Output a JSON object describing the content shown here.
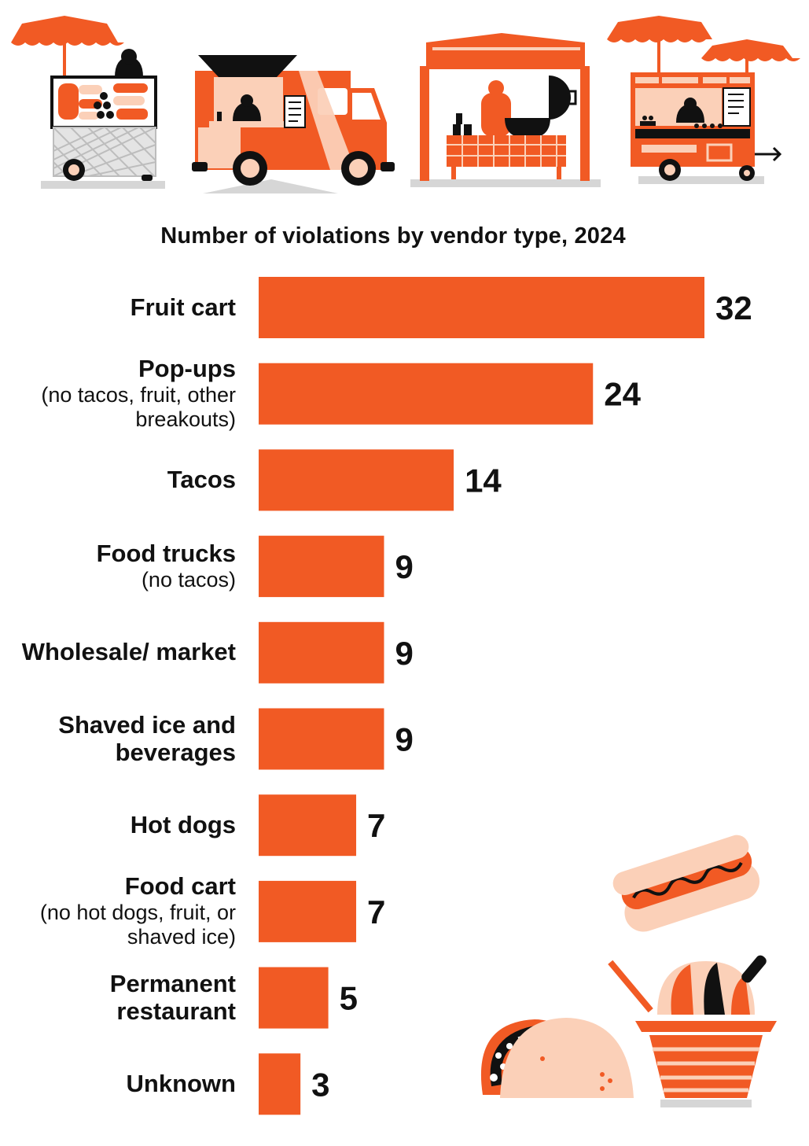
{
  "colors": {
    "bar": "#f15a24",
    "light": "#fbd0b8",
    "gray": "#d6d6d6",
    "dark": "#111111"
  },
  "icons": {
    "top": [
      "fruit-cart-icon",
      "food-truck-icon",
      "pop-up-tent-icon",
      "food-cart-icon"
    ],
    "bottom": [
      "hot-dog-icon",
      "shaved-ice-icon",
      "taco-icon"
    ]
  },
  "chart_data": {
    "type": "bar",
    "orientation": "horizontal",
    "title": "Number of violations by vendor type, 2024",
    "categories": [
      {
        "label": "Fruit cart",
        "note": ""
      },
      {
        "label": "Pop-ups",
        "note": "(no tacos, fruit, other breakouts)"
      },
      {
        "label": "Tacos",
        "note": ""
      },
      {
        "label": "Food trucks",
        "note": "(no tacos)"
      },
      {
        "label": "Wholesale/ market",
        "note": ""
      },
      {
        "label": "Shaved ice and beverages",
        "note": ""
      },
      {
        "label": "Hot dogs",
        "note": ""
      },
      {
        "label": "Food cart",
        "note": "(no hot dogs, fruit, or shaved ice)"
      },
      {
        "label": "Permanent restaurant",
        "note": ""
      },
      {
        "label": "Unknown",
        "note": ""
      }
    ],
    "values": [
      32,
      24,
      14,
      9,
      9,
      9,
      7,
      7,
      5,
      3
    ],
    "xlim": [
      0,
      32
    ],
    "grid": false,
    "legend": "none"
  }
}
